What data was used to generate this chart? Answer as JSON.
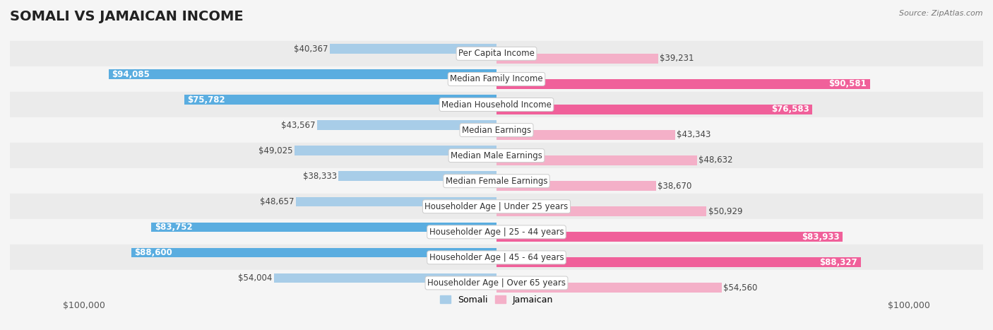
{
  "title": "SOMALI VS JAMAICAN INCOME",
  "source": "Source: ZipAtlas.com",
  "categories": [
    "Per Capita Income",
    "Median Family Income",
    "Median Household Income",
    "Median Earnings",
    "Median Male Earnings",
    "Median Female Earnings",
    "Householder Age | Under 25 years",
    "Householder Age | 25 - 44 years",
    "Householder Age | 45 - 64 years",
    "Householder Age | Over 65 years"
  ],
  "somali_values": [
    40367,
    94085,
    75782,
    43567,
    49025,
    38333,
    48657,
    83752,
    88600,
    54004
  ],
  "jamaican_values": [
    39231,
    90581,
    76583,
    43343,
    48632,
    38670,
    50929,
    83933,
    88327,
    54560
  ],
  "somali_labels": [
    "$40,367",
    "$94,085",
    "$75,782",
    "$43,567",
    "$49,025",
    "$38,333",
    "$48,657",
    "$83,752",
    "$88,600",
    "$54,004"
  ],
  "jamaican_labels": [
    "$39,231",
    "$90,581",
    "$76,583",
    "$43,343",
    "$48,632",
    "$38,670",
    "$50,929",
    "$83,933",
    "$88,327",
    "$54,560"
  ],
  "max_value": 100000,
  "somali_color_low": "#a8cde8",
  "somali_color_high": "#5aade0",
  "jamaican_color_low": "#f4b0c8",
  "jamaican_color_high": "#f0609a",
  "row_bg_odd": "#ebebeb",
  "row_bg_even": "#f5f5f5",
  "fig_bg": "#f5f5f5",
  "title_fontsize": 14,
  "label_fontsize": 8.5,
  "axis_label_fontsize": 9,
  "legend_fontsize": 9,
  "threshold_inside": 60000
}
